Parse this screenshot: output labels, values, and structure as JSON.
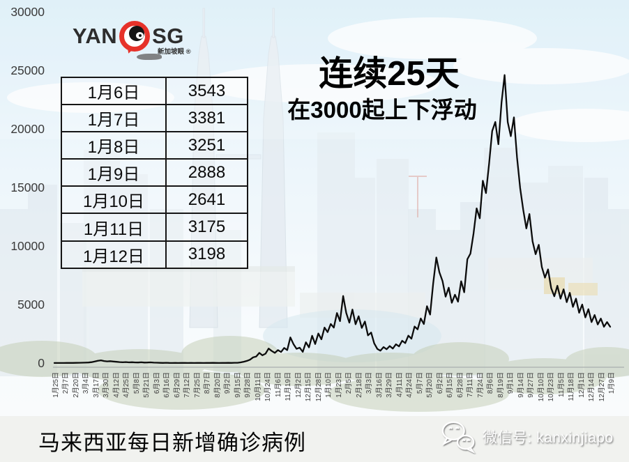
{
  "logo": {
    "left": "YAN",
    "right": "SG",
    "sub": "新加坡眼",
    "registered": "®"
  },
  "title": {
    "line1": "连续25天",
    "line2": "在3000起上下浮动"
  },
  "table": {
    "rows": [
      {
        "date": "1月6日",
        "value": "3543"
      },
      {
        "date": "1月7日",
        "value": "3381"
      },
      {
        "date": "1月8日",
        "value": "3251"
      },
      {
        "date": "1月9日",
        "value": "2888"
      },
      {
        "date": "1月10日",
        "value": "2641"
      },
      {
        "date": "1月11日",
        "value": "3175"
      },
      {
        "date": "1月12日",
        "value": "3198"
      }
    ]
  },
  "caption": "马来西亚每日新增确诊病例",
  "wechat": {
    "label": "微信号: kanxinjiapo"
  },
  "colors": {
    "accent_red": "#e6322a",
    "line": "#0c0c0c",
    "axis": "#a9aeae",
    "text_dark": "#3a3a3a",
    "sky_top": "#c7e5f4",
    "bottom_band": "#f1f2ef"
  },
  "chart_data": {
    "type": "line",
    "title": "连续25天 在3000起上下浮动",
    "series_name": "马来西亚每日新增确诊病例",
    "xlabel": "",
    "ylabel": "",
    "ylim": [
      0,
      30000
    ],
    "y_ticks": [
      0,
      5000,
      10000,
      15000,
      20000,
      25000,
      30000
    ],
    "grid": false,
    "legend": "none",
    "line_color": "#0c0c0c",
    "x_start_label": "1月25日",
    "x_end_label": "1月9日",
    "x_tick_interval_days": 13,
    "sample_interval_days": 4,
    "x_tick_labels": [
      "1月25日",
      "2月7日",
      "2月20日",
      "3月4日",
      "3月17日",
      "3月30日",
      "4月12日",
      "4月25日",
      "5月8日",
      "5月21日",
      "6月3日",
      "6月16日",
      "6月29日",
      "7月12日",
      "7月25日",
      "8月7日",
      "8月20日",
      "9月2日",
      "9月15日",
      "9月28日",
      "10月11日",
      "10月24日",
      "11月6日",
      "11月19日",
      "12月2日",
      "12月15日",
      "12月28日",
      "1月10日",
      "1月23日",
      "2月5日",
      "2月18日",
      "3月3日",
      "3月16日",
      "3月29日",
      "4月11日",
      "4月24日",
      "5月7日",
      "5月20日",
      "6月2日",
      "6月15日",
      "6月28日",
      "7月11日",
      "7月24日",
      "8月6日",
      "8月19日",
      "9月1日",
      "9月14日",
      "9月27日",
      "10月10日",
      "10月23日",
      "11月5日",
      "11月18日",
      "12月1日",
      "12月14日",
      "12月27日",
      "1月9日"
    ],
    "values": [
      3,
      4,
      5,
      7,
      9,
      10,
      14,
      18,
      24,
      28,
      36,
      50,
      80,
      130,
      190,
      235,
      170,
      140,
      160,
      130,
      105,
      85,
      68,
      84,
      57,
      71,
      55,
      47,
      67,
      39,
      48,
      60,
      37,
      31,
      19,
      11,
      21,
      10,
      7,
      11,
      5,
      13,
      9,
      6,
      12,
      8,
      14,
      10,
      7,
      13,
      9,
      15,
      11,
      8,
      13,
      10,
      19,
      14,
      26,
      21,
      62,
      115,
      182,
      287,
      489,
      561,
      871,
      659,
      805,
      1240,
      1032,
      869,
      1109,
      941,
      1290,
      1109,
      2188,
      1623,
      1212,
      1315,
      959,
      1772,
      1341,
      2335,
      1625,
      2525,
      2027,
      3027,
      2643,
      3337,
      3027,
      4275,
      3585,
      5728,
      4284,
      3455,
      4571,
      3318,
      3999,
      2998,
      3545,
      2364,
      2610,
      1683,
      1208,
      1060,
      1361,
      1178,
      1450,
      1239,
      1603,
      1424,
      1904,
      1703,
      2340,
      2078,
      3120,
      2881,
      3807,
      3332,
      4855,
      4140,
      6806,
      9020,
      7748,
      6999,
      5671,
      6440,
      5150,
      5841,
      5244,
      6988,
      6045,
      8868,
      9353,
      11079,
      13215,
      12366,
      15573,
      14516,
      17045,
      19819,
      20596,
      18688,
      22242,
      24599,
      20579,
      19378,
      20988,
      17577,
      14954,
      13104,
      11500,
      12735,
      10400,
      9300,
      10100,
      8200,
      7300,
      8000,
      6400,
      5700,
      6600,
      5500,
      6300,
      5200,
      6000,
      4800,
      5500,
      4300,
      5000,
      3900,
      4600,
      3500,
      4100,
      3300,
      3800,
      3100,
      3500,
      3100
    ]
  }
}
